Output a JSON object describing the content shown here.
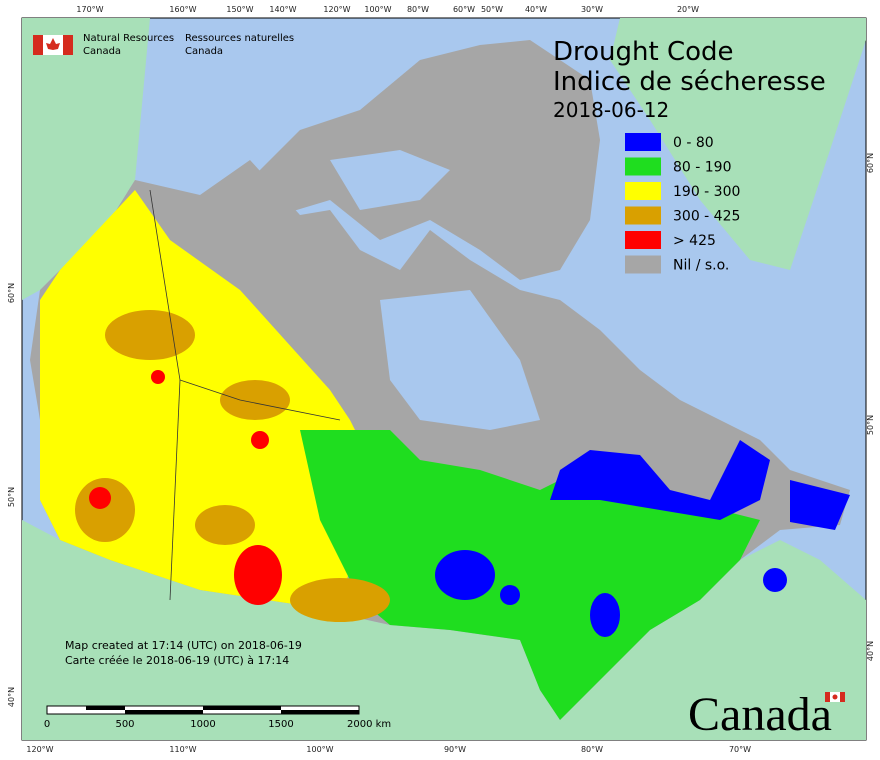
{
  "header": {
    "en_line1": "Natural Resources",
    "en_line2": "Canada",
    "fr_line1": "Ressources naturelles",
    "fr_line2": "Canada"
  },
  "title": {
    "en": "Drought Code",
    "fr": "Indice de sécheresse",
    "date": "2018-06-12"
  },
  "legend": [
    {
      "label": "0 - 80",
      "color": "#0000ff"
    },
    {
      "label": "80 - 190",
      "color": "#1fdd1f"
    },
    {
      "label": "190 - 300",
      "color": "#ffff00"
    },
    {
      "label": "300 - 425",
      "color": "#d9a000"
    },
    {
      "label": "> 425",
      "color": "#ff0000"
    },
    {
      "label": "Nil / s.o.",
      "color": "#a6a6a6"
    }
  ],
  "graticule": {
    "top": [
      "170°W",
      "160°W",
      "150°W",
      "140°W",
      "120°W",
      "100°W",
      "80°W",
      "60°W",
      "50°W",
      "40°W",
      "30°W",
      "20°W"
    ],
    "bottom": [
      "120°W",
      "110°W",
      "100°W",
      "90°W",
      "80°W",
      "70°W"
    ],
    "left": [
      "60°N",
      "50°N",
      "40°N"
    ],
    "right": [
      "60°N",
      "50°N",
      "40°N"
    ]
  },
  "credits": [
    "Map created at 17:14 (UTC) on 2018-06-19",
    "Carte créée le 2018-06-19 (UTC) à 17:14"
  ],
  "scale": [
    "0",
    "500",
    "1000",
    "1500",
    "2000 km"
  ],
  "wordmark": "Canada"
}
